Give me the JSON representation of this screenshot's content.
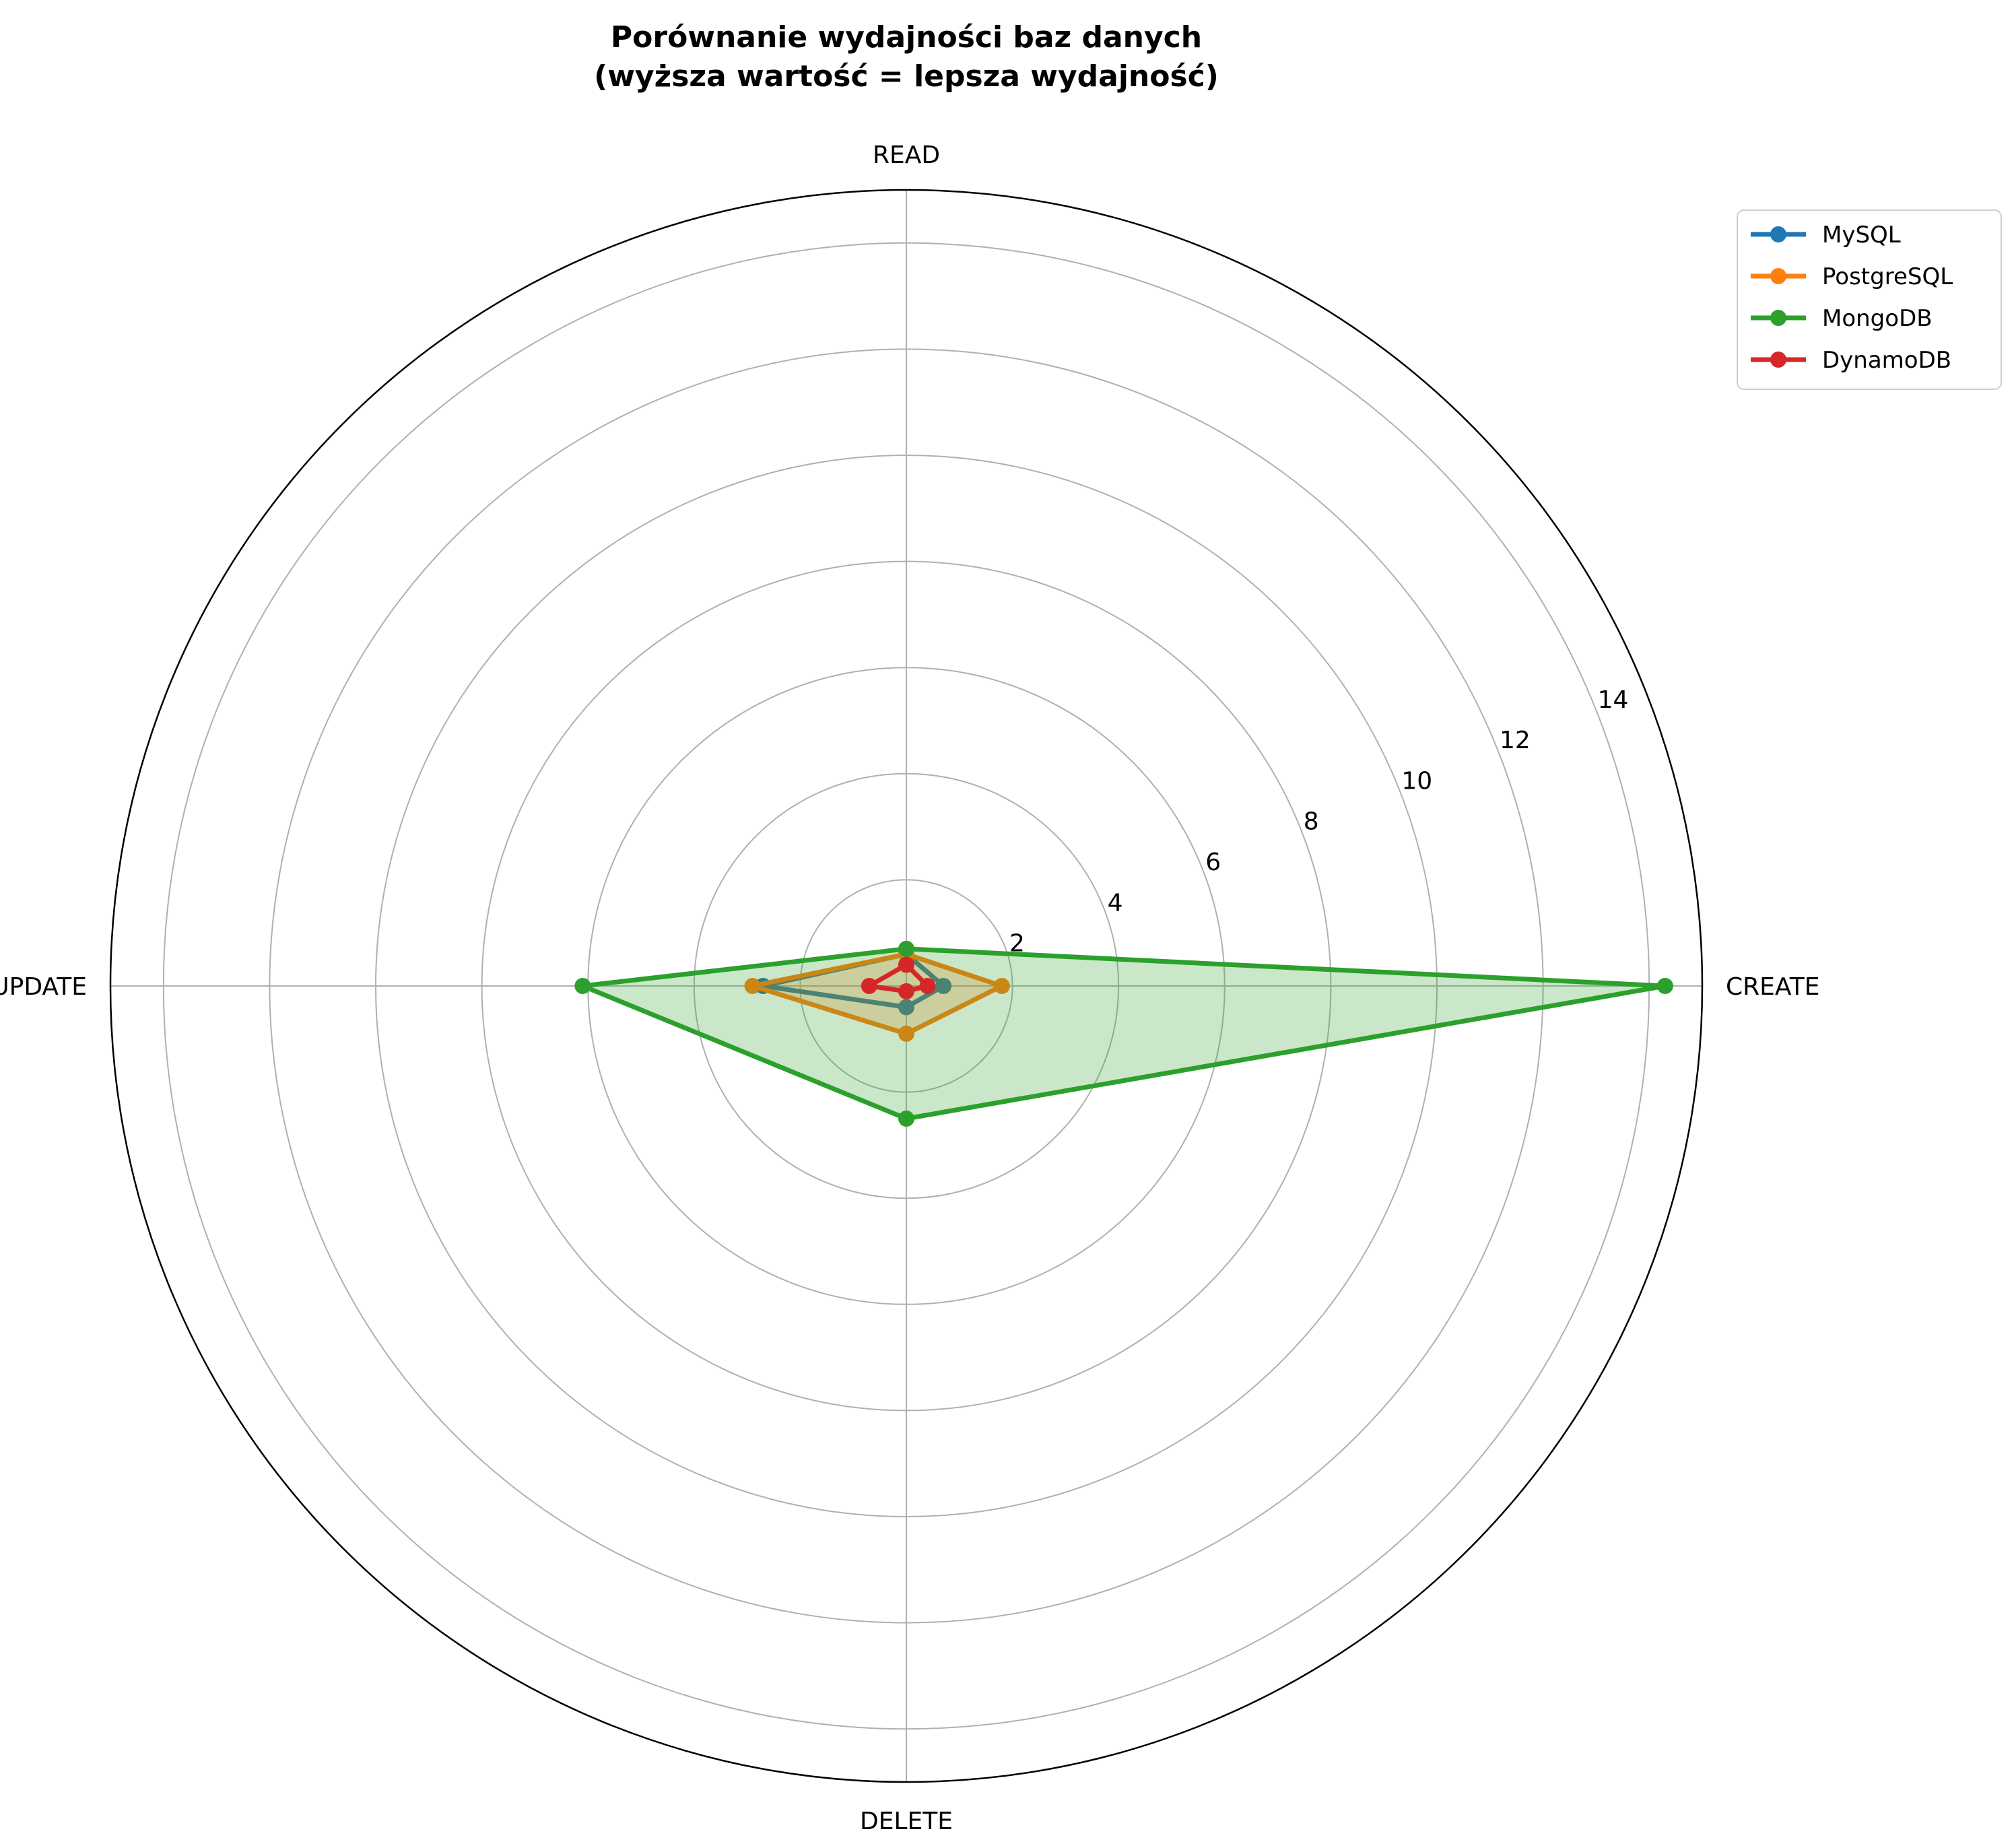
{
  "chart_data": {
    "type": "radar",
    "title_line1": "Porównanie wydajności baz danych",
    "title_line2": "(wyższa wartość = lepsza wydajność)",
    "categories": [
      "CREATE",
      "READ",
      "UPDATE",
      "DELETE"
    ],
    "rlim": [
      0,
      15
    ],
    "rticks": [
      2,
      4,
      6,
      8,
      10,
      12,
      14
    ],
    "grid": true,
    "legend_position": "upper-right outside",
    "series": [
      {
        "name": "MySQL",
        "color": "#1f77b4",
        "values": [
          0.7,
          0.6,
          2.7,
          0.4
        ],
        "fill": false
      },
      {
        "name": "PostgreSQL",
        "color": "#ff7f0e",
        "values": [
          1.8,
          0.6,
          2.9,
          0.9
        ],
        "fill": true
      },
      {
        "name": "MongoDB",
        "color": "#2ca02c",
        "values": [
          14.3,
          0.7,
          6.1,
          2.5
        ],
        "fill": true
      },
      {
        "name": "DynamoDB",
        "color": "#d62728",
        "values": [
          0.4,
          0.4,
          0.7,
          0.1
        ],
        "fill": false
      }
    ]
  }
}
